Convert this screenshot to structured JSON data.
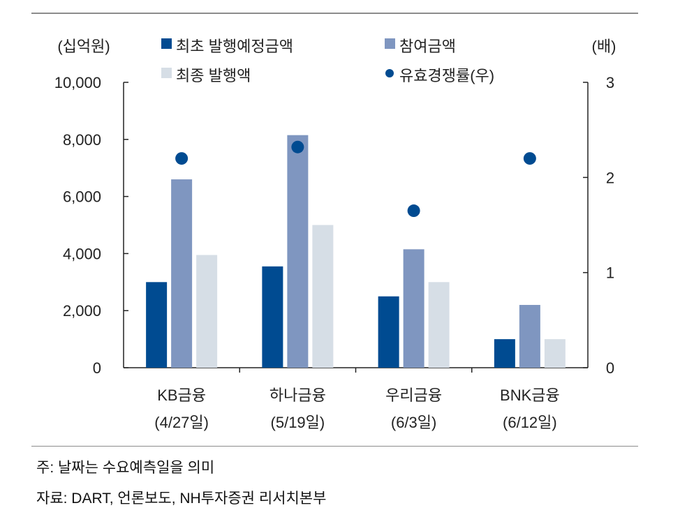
{
  "chart_data": {
    "type": "bar",
    "y_left_unit": "(십억원)",
    "y_right_unit": "(배)",
    "ylim_left": [
      0,
      10000
    ],
    "yticks_left": [
      0,
      2000,
      4000,
      6000,
      8000,
      10000
    ],
    "ytick_labels_left": [
      "0",
      "2,000",
      "4,000",
      "6,000",
      "8,000",
      "10,000"
    ],
    "ylim_right": [
      0,
      3
    ],
    "yticks_right": [
      0,
      1,
      2,
      3
    ],
    "ytick_labels_right": [
      "0",
      "1",
      "2",
      "3"
    ],
    "categories": [
      {
        "name": "KB금융",
        "date": "(4/27일)"
      },
      {
        "name": "하나금융",
        "date": "(5/19일)"
      },
      {
        "name": "우리금융",
        "date": "(6/3일)"
      },
      {
        "name": "BNK금융",
        "date": "(6/12일)"
      }
    ],
    "series": [
      {
        "name": "최초 발행예정금액",
        "type": "bar",
        "axis": "left",
        "color": "#004b91",
        "values": [
          3000,
          3550,
          2500,
          1000
        ]
      },
      {
        "name": "참여금액",
        "type": "bar",
        "axis": "left",
        "color": "#7f96c0",
        "values": [
          6600,
          8150,
          4150,
          2200
        ]
      },
      {
        "name": "최종 발행액",
        "type": "bar",
        "axis": "left",
        "color": "#d6dee6",
        "values": [
          3950,
          5000,
          3000,
          1000
        ]
      },
      {
        "name": "유효경쟁률(우)",
        "type": "scatter",
        "axis": "right",
        "color": "#004b91",
        "values": [
          2.2,
          2.32,
          1.65,
          2.2
        ]
      }
    ],
    "legend_position": "top",
    "grid": false
  },
  "notes": {
    "note": "주: 날짜는 수요예측일을 의미",
    "source": "자료: DART, 언론보도, NH투자증권 리서치본부"
  }
}
